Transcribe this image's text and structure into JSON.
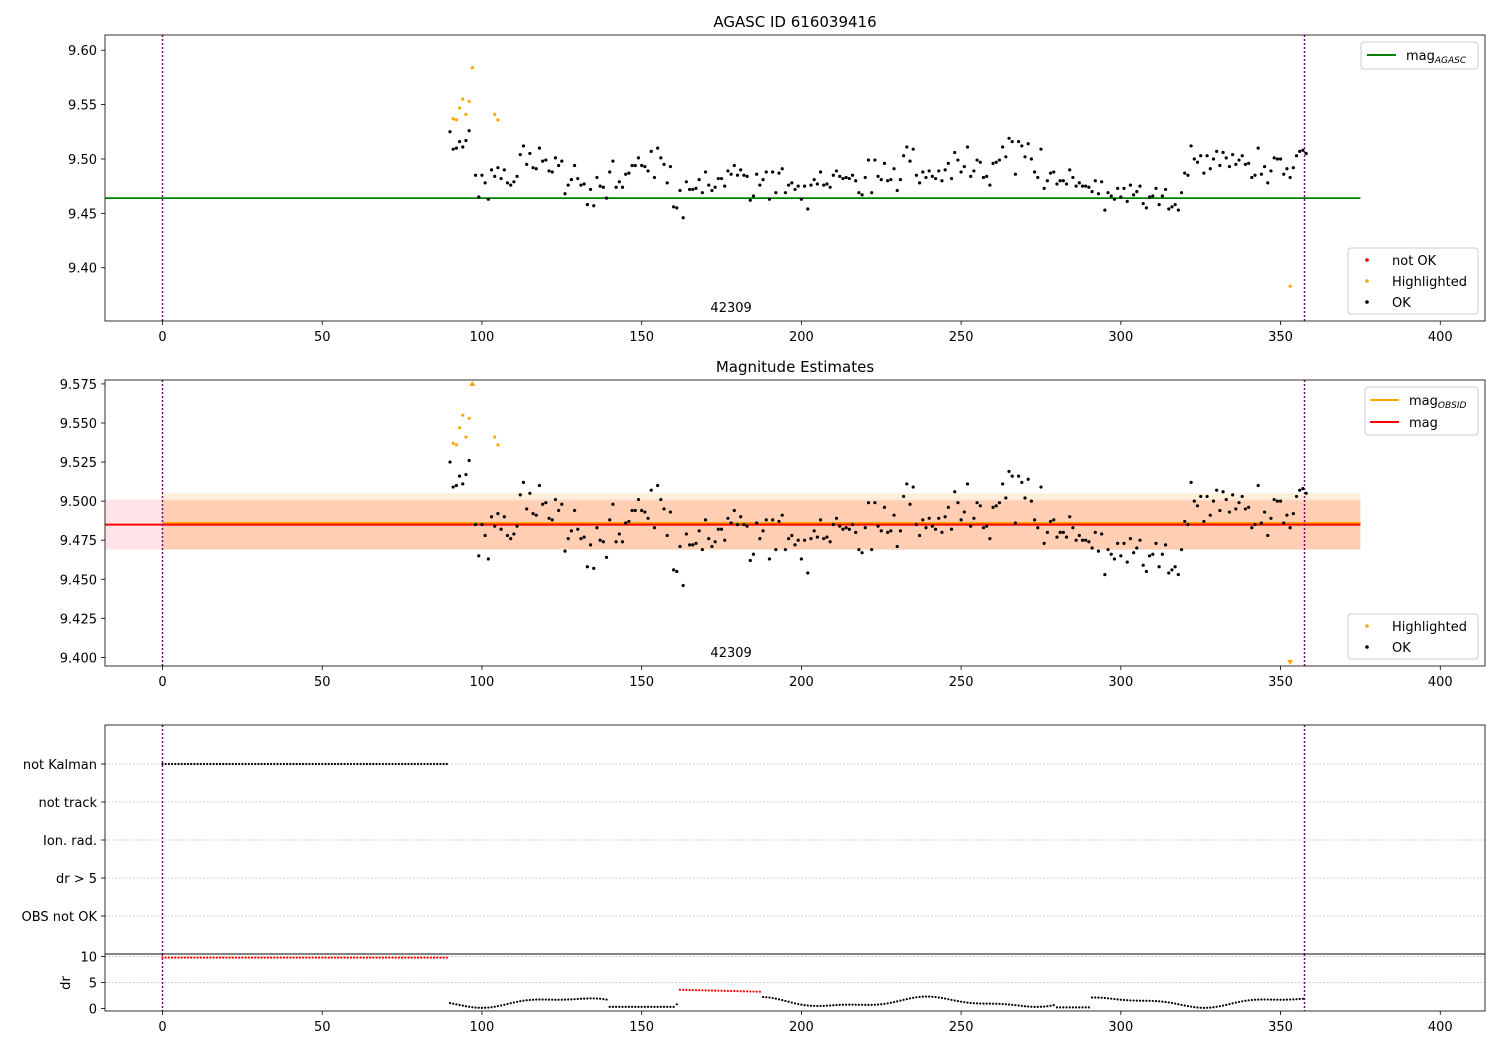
{
  "chart_data": [
    {
      "type": "scatter",
      "title": "AGASC ID 616039416",
      "xlim": [
        -18,
        414
      ],
      "ylim": [
        9.351,
        9.614
      ],
      "xticks": [
        0,
        50,
        100,
        150,
        200,
        250,
        300,
        350,
        400
      ],
      "yticks": [
        9.4,
        9.45,
        9.5,
        9.55,
        9.6
      ],
      "ytick_labels": [
        "9.40",
        "9.45",
        "9.50",
        "9.55",
        "9.60"
      ],
      "annotation": "42309",
      "vlines": [
        0,
        357.5
      ],
      "lines": [
        {
          "name": "mag_AGASC",
          "label": "mag",
          "sub": "AGASC",
          "y": 9.464,
          "x": [
            -18,
            375
          ],
          "color": "#008000"
        }
      ],
      "legend_lines": [
        "mag_AGASC"
      ],
      "legend_points": [
        {
          "label": "not OK",
          "color": "#ff0000"
        },
        {
          "label": "Highlighted",
          "color": "#ffa500"
        },
        {
          "label": "OK",
          "color": "#000000"
        }
      ],
      "series": [
        {
          "name": "Highlighted",
          "color": "#ffa500",
          "points": [
            [
              91,
              9.537
            ],
            [
              92,
              9.536
            ],
            [
              93,
              9.547
            ],
            [
              94,
              9.555
            ],
            [
              95,
              9.541
            ],
            [
              96,
              9.553
            ],
            [
              97,
              9.584
            ],
            [
              104,
              9.541
            ],
            [
              105,
              9.536
            ],
            [
              353,
              9.383
            ]
          ]
        },
        {
          "name": "OK",
          "color": "#000000",
          "values": [
            9.525,
            9.509,
            9.51,
            9.516,
            9.511,
            9.517,
            9.526,
            9.485,
            9.465,
            9.485,
            9.478,
            9.463,
            9.49,
            9.484,
            9.492,
            9.482,
            9.49,
            9.478,
            9.476,
            9.479,
            9.484,
            9.504,
            9.512,
            9.495,
            9.505,
            9.492,
            9.491,
            9.51,
            9.498,
            9.499,
            9.489,
            9.488,
            9.501,
            9.494,
            9.498,
            9.468,
            9.476,
            9.481,
            9.494,
            9.482,
            9.476,
            9.477,
            9.458,
            9.472,
            9.457,
            9.483,
            9.475,
            9.474,
            9.464,
            9.488,
            9.498,
            9.474,
            9.479,
            9.474,
            9.486,
            9.487,
            9.494,
            9.494,
            9.501,
            9.494,
            9.493,
            9.489,
            9.507,
            9.483,
            9.51,
            9.501,
            9.495,
            9.478,
            9.493,
            9.456,
            9.455,
            9.471,
            9.446,
            9.479,
            9.472,
            9.472,
            9.473,
            9.481,
            9.469,
            9.488,
            9.476,
            9.471,
            9.474,
            9.482,
            9.482,
            9.475,
            9.489,
            9.486,
            9.494,
            9.485,
            9.49,
            9.485,
            9.484,
            9.462,
            9.466,
            9.486,
            9.476,
            9.481,
            9.488,
            9.463,
            9.488,
            9.469,
            9.487,
            9.491,
            9.469,
            9.476,
            9.478,
            9.472,
            9.475,
            9.463,
            9.475,
            9.454,
            9.476,
            9.481,
            9.477,
            9.488,
            9.476,
            9.477,
            9.474,
            9.485,
            9.489,
            9.484,
            9.482,
            9.483,
            9.482,
            9.485,
            9.48,
            9.469,
            9.467,
            9.483,
            9.499,
            9.469,
            9.499,
            9.484,
            9.481,
            9.496,
            9.48,
            9.481,
            9.491,
            9.471,
            9.481,
            9.503,
            9.511,
            9.498,
            9.509,
            9.485,
            9.478,
            9.488,
            9.483,
            9.489,
            9.484,
            9.482,
            9.489,
            9.48,
            9.49,
            9.496,
            9.482,
            9.506,
            9.499,
            9.488,
            9.493,
            9.511,
            9.484,
            9.489,
            9.499,
            9.497,
            9.483,
            9.484,
            9.476,
            9.496,
            9.497,
            9.499,
            9.511,
            9.502,
            9.519,
            9.516,
            9.486,
            9.516,
            9.512,
            9.502,
            9.514,
            9.5,
            9.488,
            9.483,
            9.509,
            9.473,
            9.48,
            9.487,
            9.488,
            9.477,
            9.48,
            9.48,
            9.477,
            9.49,
            9.483,
            9.475,
            9.478,
            9.475,
            9.475,
            9.474,
            9.47,
            9.48,
            9.468,
            9.479,
            9.453,
            9.469,
            9.466,
            9.463,
            9.473,
            9.465,
            9.473,
            9.461,
            9.476,
            9.467,
            9.47,
            9.475,
            9.459,
            9.455,
            9.465,
            9.466,
            9.473,
            9.458,
            9.466,
            9.472,
            9.454,
            9.456,
            9.458,
            9.453,
            9.469,
            9.487,
            9.485,
            9.512,
            9.5,
            9.497,
            9.503,
            9.487,
            9.503,
            9.491,
            9.5,
            9.507,
            9.494,
            9.506,
            9.501,
            9.493,
            9.504,
            9.495,
            9.499,
            9.503,
            9.495,
            9.496,
            9.483,
            9.485,
            9.51,
            9.486,
            9.493,
            9.478,
            9.489,
            9.501,
            9.5,
            9.5,
            9.486,
            9.491,
            9.483,
            9.492,
            9.503,
            9.507,
            9.508,
            9.505
          ]
        },
        {
          "name": "not OK",
          "color": "#ff0000",
          "values": []
        }
      ]
    },
    {
      "type": "scatter",
      "title": "Magnitude Estimates",
      "xlim": [
        -18,
        414
      ],
      "ylim": [
        9.3945,
        9.5775
      ],
      "xticks": [
        0,
        50,
        100,
        150,
        200,
        250,
        300,
        350,
        400
      ],
      "yticks": [
        9.4,
        9.425,
        9.45,
        9.475,
        9.5,
        9.525,
        9.55,
        9.575
      ],
      "ytick_labels": [
        "9.400",
        "9.425",
        "9.450",
        "9.475",
        "9.500",
        "9.525",
        "9.550",
        "9.575"
      ],
      "annotation": "42309",
      "vlines": [
        0,
        357.5
      ],
      "lines": [
        {
          "name": "mag_OBSID",
          "label": "mag",
          "sub": "OBSID",
          "y": 9.486,
          "x": [
            0,
            375
          ],
          "color": "#ffa500"
        },
        {
          "name": "mag",
          "label": "mag",
          "y": 9.485,
          "x": [
            -18,
            375
          ],
          "color": "#ff0000"
        }
      ],
      "bands": [
        {
          "x": [
            -18,
            375
          ],
          "y": [
            9.469,
            9.501
          ],
          "color": "#ff9aa8",
          "opacity": 0.28
        },
        {
          "x": [
            0,
            375
          ],
          "y": [
            9.469,
            9.505
          ],
          "color": "#ffc880",
          "opacity": 0.3
        },
        {
          "x": [
            0,
            375
          ],
          "y": [
            9.469,
            9.5
          ],
          "color": "#ffa060",
          "opacity": 0.2
        }
      ],
      "legend_lines": [
        "mag_OBSID",
        "mag"
      ],
      "legend_points": [
        {
          "label": "Highlighted",
          "color": "#ffa500"
        },
        {
          "label": "OK",
          "color": "#000000"
        }
      ],
      "out_of_range": [
        {
          "x": 97,
          "direction": "up"
        },
        {
          "x": 353,
          "direction": "down"
        }
      ],
      "series_ref": "same points as the first panel"
    },
    {
      "type": "scatter",
      "xlim": [
        -18,
        414
      ],
      "vlines": [
        0,
        357.5
      ],
      "flag_labels": [
        "not Kalman",
        "not track",
        "Ion. rad.",
        "dr > 5",
        "OBS not OK"
      ],
      "flags": [
        {
          "label": "not Kalman",
          "x_range": [
            0,
            89
          ],
          "color": "#000000"
        }
      ]
    },
    {
      "type": "scatter",
      "ylabel": "dr",
      "xlim": [
        -18,
        414
      ],
      "ylim": [
        -0.5,
        10.5
      ],
      "yticks": [
        0,
        5,
        10
      ],
      "ytick_labels": [
        "0",
        "5",
        "10"
      ],
      "xticks": [
        0,
        50,
        100,
        150,
        200,
        250,
        300,
        350,
        400
      ],
      "vlines": [
        0,
        357.5
      ],
      "series": [
        {
          "name": "dr high",
          "color": "#ff0000",
          "x_range": [
            0,
            89
          ],
          "y": 9.8
        },
        {
          "name": "dr mid",
          "color": "#ff0000",
          "x_range": [
            162,
            187
          ],
          "y": 3.6
        },
        {
          "name": "dr low",
          "color": "#000000",
          "x_range": [
            90,
            357
          ],
          "y": 1.2
        }
      ]
    }
  ]
}
